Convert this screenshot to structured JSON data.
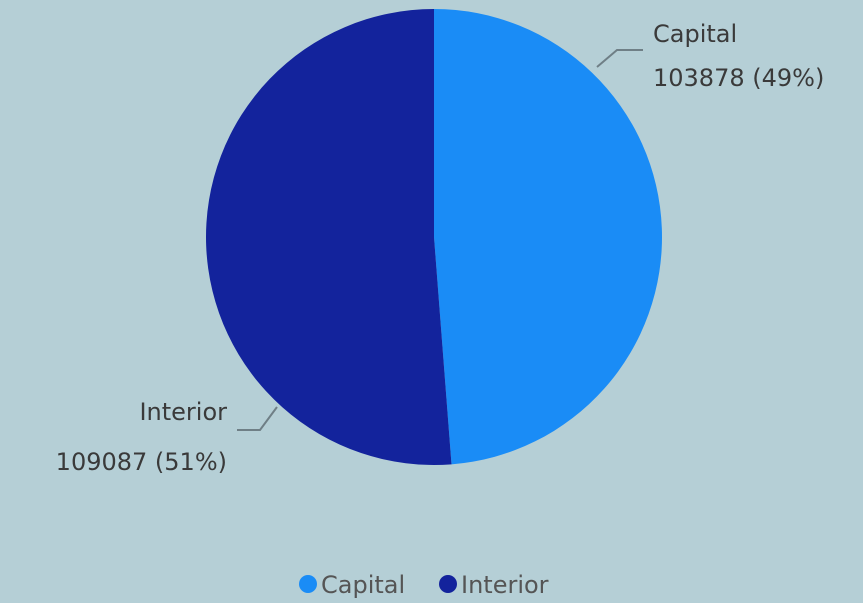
{
  "chart_data": {
    "type": "pie",
    "series": [
      {
        "name": "Capital",
        "value": 103878,
        "percent": "49%",
        "color": "#1a8cf6",
        "label_value": "103878 (49%)"
      },
      {
        "name": "Interior",
        "value": 109087,
        "percent": "51%",
        "color": "#13239c",
        "label_value": "109087 (51%)"
      }
    ],
    "legend": {
      "position": "bottom",
      "items": [
        "Capital",
        "Interior"
      ]
    },
    "data_labels": "outside with leader lines"
  },
  "colors": {
    "background": "#b5cfd6",
    "leader_line": "#6f7f86"
  }
}
